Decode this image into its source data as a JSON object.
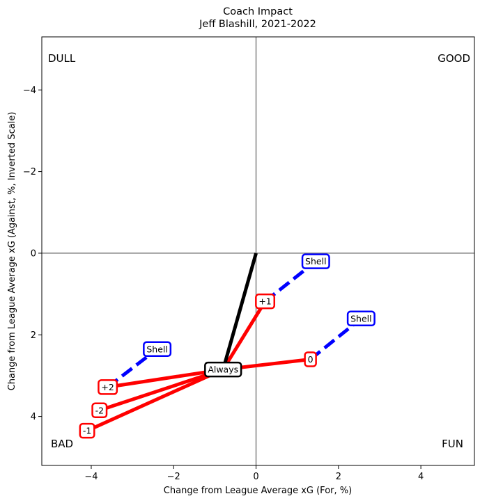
{
  "chart_data": {
    "type": "line",
    "title": "Coach Impact",
    "subtitle": "Jeff Blashill, 2021-2022",
    "xlabel": "Change from League Average xG (For, %)",
    "ylabel": "Change from League Average xG (Against, %, Inverted Scale)",
    "xlim": [
      -5.2,
      5.3
    ],
    "ylim": [
      5.2,
      -5.3
    ],
    "y_inverted": true,
    "xticks": [
      -4,
      -2,
      0,
      2,
      4
    ],
    "yticks": [
      -4,
      -2,
      0,
      2,
      4
    ],
    "xtick_labels": [
      "−4",
      "−2",
      "0",
      "2",
      "4"
    ],
    "ytick_labels": [
      "−4",
      "−2",
      "0",
      "2",
      "4"
    ],
    "grid": false,
    "quadrant_labels": {
      "top_left": "DULL",
      "top_right": "GOOD",
      "bottom_left": "BAD",
      "bottom_right": "FUN"
    },
    "colors": {
      "always": "#000000",
      "score_state": "#ff0000",
      "shell": "#0000ff",
      "zero_lines": "#808080"
    },
    "always_segment": {
      "from": [
        0,
        0
      ],
      "to": [
        -0.8,
        2.85
      ],
      "label": "Always"
    },
    "score_states": [
      {
        "label": "+1",
        "point": [
          0.22,
          1.18
        ],
        "shell": [
          1.45,
          0.2
        ],
        "shell_label": "Shell"
      },
      {
        "label": "0",
        "point": [
          1.32,
          2.6
        ],
        "shell": [
          2.55,
          1.6
        ],
        "shell_label": "Shell"
      },
      {
        "label": "+2",
        "point": [
          -3.6,
          3.28
        ],
        "shell": [
          -2.4,
          2.35
        ],
        "shell_label": "Shell"
      },
      {
        "label": "-2",
        "point": [
          -3.8,
          3.85
        ],
        "shell": null,
        "shell_label": ""
      },
      {
        "label": "-1",
        "point": [
          -4.1,
          4.35
        ],
        "shell": null,
        "shell_label": ""
      }
    ]
  }
}
